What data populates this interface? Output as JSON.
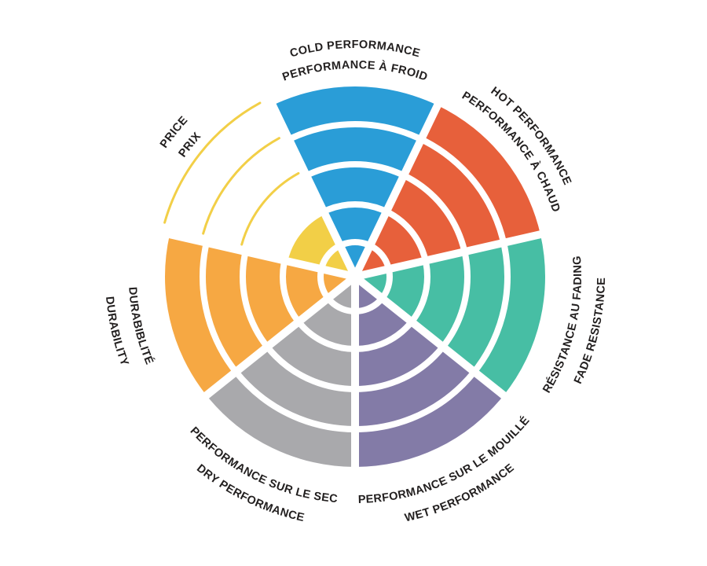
{
  "figure": {
    "description": "Bilingual (English/French) 7-sector performance rating wheel",
    "background_color": "#FFFFFF",
    "label_text_color": "#221F1F",
    "separator_color": "#FFFFFF"
  },
  "chart_data": {
    "type": "pie",
    "variant": "polar-rating-wheel",
    "levels": 5,
    "max_value": 5,
    "start": "top",
    "direction": "clockwise",
    "legend_position": "around-rim",
    "sectors": [
      {
        "id": "cold-performance",
        "label_en": "COLD PERFORMANCE",
        "label_fr": "PERFORMANCE À FROID",
        "color": "#2A9DD7",
        "value": 5
      },
      {
        "id": "hot-performance",
        "label_en": "HOT PERFORMANCE",
        "label_fr": "PERFORMANCE À CHAUD",
        "color": "#E7603B",
        "value": 5
      },
      {
        "id": "fade-resistance",
        "label_en": "FADE RESISTANCE",
        "label_fr": "RÉSISTANCE AU FADING",
        "color": "#47BEA4",
        "value": 5
      },
      {
        "id": "wet-performance",
        "label_en": "WET PERFORMANCE",
        "label_fr": "PERFORMANCE SUR LE MOUILLÉ",
        "color": "#837BA7",
        "value": 5
      },
      {
        "id": "dry-performance",
        "label_en": "DRY PERFORMANCE",
        "label_fr": "PERFORMANCE SUR LE SEC",
        "color": "#A9A9AC",
        "value": 5
      },
      {
        "id": "durability",
        "label_en": "DURABILITY",
        "label_fr": "DURABIBLITÉ",
        "color": "#F6A843",
        "value": 5
      },
      {
        "id": "price",
        "label_en": "PRICE",
        "label_fr": "PRIX",
        "color": "#F2CF47",
        "value": 2,
        "outline_levels": [
          3,
          4,
          5
        ]
      }
    ]
  }
}
